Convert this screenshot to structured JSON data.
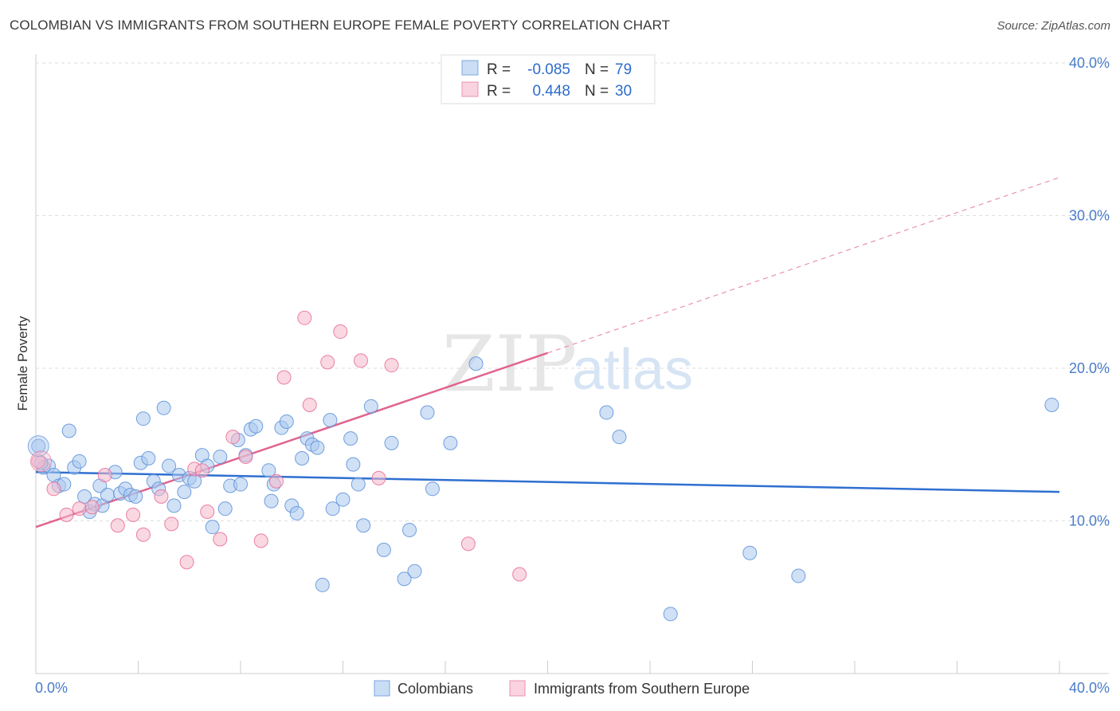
{
  "title": "COLOMBIAN VS IMMIGRANTS FROM SOUTHERN EUROPE FEMALE POVERTY CORRELATION CHART",
  "source": "Source: ZipAtlas.com",
  "watermark": {
    "zip": "ZIP",
    "atlas": "atlas"
  },
  "legend": {
    "rows": [
      {
        "r_label": "R =",
        "r_value": "-0.085",
        "n_label": "N =",
        "n_value": "79",
        "color": "#a9c8ef"
      },
      {
        "r_label": "R =",
        "r_value": "0.448",
        "n_label": "N =",
        "n_value": "30",
        "color": "#f4b8cb"
      }
    ]
  },
  "bottom_legend": [
    {
      "label": "Colombians",
      "color": "#a9c8ef"
    },
    {
      "label": "Immigrants from Southern Europe",
      "color": "#f4b8cb"
    }
  ],
  "chart_data": {
    "type": "scatter",
    "title": "COLOMBIAN VS IMMIGRANTS FROM SOUTHERN EUROPE FEMALE POVERTY CORRELATION CHART",
    "xlabel": "",
    "ylabel": "Female Poverty",
    "xlim": [
      0,
      40
    ],
    "ylim": [
      0,
      40
    ],
    "x_tick_labels": [
      "0.0%",
      "40.0%"
    ],
    "y_tick_labels": [
      "10.0%",
      "20.0%",
      "30.0%",
      "40.0%"
    ],
    "y_ticks": [
      10,
      20,
      30,
      40
    ],
    "grid": "horizontal dashed",
    "legend_position": "top-center",
    "series": [
      {
        "name": "Colombians",
        "color": "#5b8fd9",
        "fill": "#a9c8ef",
        "trend": {
          "x": [
            0,
            40
          ],
          "y": [
            13.2,
            11.9
          ]
        },
        "points": [
          [
            0.1,
            14.9
          ],
          [
            0.3,
            13.5
          ],
          [
            0.5,
            13.6
          ],
          [
            0.7,
            13.0
          ],
          [
            0.9,
            12.3
          ],
          [
            1.1,
            12.4
          ],
          [
            1.3,
            15.9
          ],
          [
            1.5,
            13.5
          ],
          [
            1.7,
            13.9
          ],
          [
            1.9,
            11.6
          ],
          [
            2.1,
            10.6
          ],
          [
            2.3,
            11.1
          ],
          [
            2.5,
            12.3
          ],
          [
            2.6,
            11.0
          ],
          [
            2.8,
            11.7
          ],
          [
            3.1,
            13.2
          ],
          [
            3.3,
            11.8
          ],
          [
            3.5,
            12.1
          ],
          [
            3.7,
            11.7
          ],
          [
            3.9,
            11.6
          ],
          [
            4.1,
            13.8
          ],
          [
            4.2,
            16.7
          ],
          [
            4.4,
            14.1
          ],
          [
            4.6,
            12.6
          ],
          [
            4.8,
            12.1
          ],
          [
            5.0,
            17.4
          ],
          [
            5.2,
            13.6
          ],
          [
            5.4,
            11.0
          ],
          [
            5.6,
            13.0
          ],
          [
            5.8,
            11.9
          ],
          [
            6.0,
            12.8
          ],
          [
            6.2,
            12.6
          ],
          [
            6.5,
            14.3
          ],
          [
            6.7,
            13.6
          ],
          [
            6.9,
            9.6
          ],
          [
            7.2,
            14.2
          ],
          [
            7.4,
            10.8
          ],
          [
            7.6,
            12.3
          ],
          [
            7.9,
            15.3
          ],
          [
            8.0,
            12.4
          ],
          [
            8.2,
            14.3
          ],
          [
            8.4,
            16.0
          ],
          [
            8.6,
            16.2
          ],
          [
            9.1,
            13.3
          ],
          [
            9.2,
            11.3
          ],
          [
            9.3,
            12.4
          ],
          [
            9.6,
            16.1
          ],
          [
            9.8,
            16.5
          ],
          [
            10.0,
            11.0
          ],
          [
            10.2,
            10.5
          ],
          [
            10.4,
            14.1
          ],
          [
            10.6,
            15.4
          ],
          [
            10.8,
            15.0
          ],
          [
            11.0,
            14.8
          ],
          [
            11.2,
            5.8
          ],
          [
            11.5,
            16.6
          ],
          [
            11.6,
            10.8
          ],
          [
            12.0,
            11.4
          ],
          [
            12.3,
            15.4
          ],
          [
            12.4,
            13.7
          ],
          [
            12.6,
            12.4
          ],
          [
            12.8,
            9.7
          ],
          [
            13.1,
            17.5
          ],
          [
            13.6,
            8.1
          ],
          [
            13.9,
            15.1
          ],
          [
            14.4,
            6.2
          ],
          [
            14.6,
            9.4
          ],
          [
            14.8,
            6.7
          ],
          [
            15.3,
            17.1
          ],
          [
            15.5,
            12.1
          ],
          [
            16.2,
            15.1
          ],
          [
            17.2,
            20.3
          ],
          [
            22.3,
            17.1
          ],
          [
            22.8,
            15.5
          ],
          [
            24.8,
            3.9
          ],
          [
            27.9,
            7.9
          ],
          [
            29.8,
            6.4
          ],
          [
            39.7,
            17.6
          ],
          [
            0.2,
            13.8
          ]
        ]
      },
      {
        "name": "Immigrants from Southern Europe",
        "color": "#e86b96",
        "fill": "#f4b8cb",
        "trend_solid": {
          "x": [
            0,
            20
          ],
          "y": [
            9.6,
            21.0
          ]
        },
        "trend_dashed": {
          "x": [
            20,
            40
          ],
          "y": [
            21.0,
            32.5
          ]
        },
        "points": [
          [
            0.1,
            13.9
          ],
          [
            0.7,
            12.1
          ],
          [
            1.2,
            10.4
          ],
          [
            1.7,
            10.8
          ],
          [
            2.2,
            10.9
          ],
          [
            2.7,
            13.0
          ],
          [
            3.2,
            9.7
          ],
          [
            3.8,
            10.4
          ],
          [
            4.2,
            9.1
          ],
          [
            4.9,
            11.6
          ],
          [
            5.3,
            9.8
          ],
          [
            5.9,
            7.3
          ],
          [
            6.2,
            13.4
          ],
          [
            6.5,
            13.3
          ],
          [
            6.7,
            10.6
          ],
          [
            7.2,
            8.8
          ],
          [
            7.7,
            15.5
          ],
          [
            8.2,
            14.2
          ],
          [
            8.8,
            8.7
          ],
          [
            9.4,
            12.6
          ],
          [
            9.7,
            19.4
          ],
          [
            10.5,
            23.3
          ],
          [
            10.7,
            17.6
          ],
          [
            11.4,
            20.4
          ],
          [
            11.9,
            22.4
          ],
          [
            12.7,
            20.5
          ],
          [
            13.4,
            12.8
          ],
          [
            13.9,
            20.2
          ],
          [
            16.9,
            8.5
          ],
          [
            18.9,
            6.5
          ]
        ]
      }
    ]
  }
}
